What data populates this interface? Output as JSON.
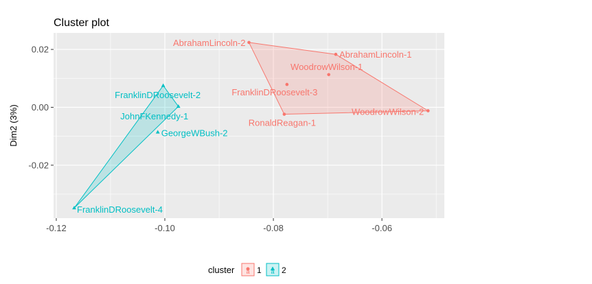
{
  "chart_data": {
    "type": "scatter",
    "title": "Cluster plot",
    "xlabel": "",
    "ylabel": "Dim2 (3%)",
    "xlim": [
      -0.1205,
      -0.0485
    ],
    "ylim": [
      -0.0383,
      0.0257
    ],
    "x_ticks": [
      -0.12,
      -0.1,
      -0.08,
      -0.06
    ],
    "x_tick_labels": [
      "-0.12",
      "-0.10",
      "-0.08",
      "-0.06"
    ],
    "y_ticks": [
      0.02,
      0.0,
      -0.02
    ],
    "y_tick_labels": [
      "0.02",
      "0.00",
      "-0.02"
    ],
    "grid": true,
    "legend": {
      "title": "cluster",
      "position": "bottom",
      "entries": [
        "1",
        "2"
      ]
    },
    "series": [
      {
        "name": "1",
        "color": "#F8766D",
        "marker": "circle",
        "hull": [
          "AbrahamLincoln-2",
          "AbrahamLincoln-1",
          "WoodrowWilson-2",
          "RonaldReagan-1"
        ],
        "points": [
          {
            "label": "AbrahamLincoln-2",
            "x": -0.0845,
            "y": 0.0224
          },
          {
            "label": "AbrahamLincoln-1",
            "x": -0.0685,
            "y": 0.0183
          },
          {
            "label": "WoodrowWilson-1",
            "x": -0.0698,
            "y": 0.0113
          },
          {
            "label": "FranklinDRoosevelt-3",
            "x": -0.0775,
            "y": 0.0079
          },
          {
            "label": "WoodrowWilson-2",
            "x": -0.0515,
            "y": -0.0012
          },
          {
            "label": "RonaldReagan-1",
            "x": -0.078,
            "y": -0.0024
          }
        ]
      },
      {
        "name": "2",
        "color": "#00BFC4",
        "marker": "triangle",
        "hull": [
          "FranklinDRoosevelt-2",
          "JohnFKennedy-1",
          "FranklinDRoosevelt-4"
        ],
        "points": [
          {
            "label": "FranklinDRoosevelt-2",
            "x": -0.1003,
            "y": 0.0075
          },
          {
            "label": "JohnFKennedy-1",
            "x": -0.0975,
            "y": 0.0003
          },
          {
            "label": "GeorgeWBush-2",
            "x": -0.1013,
            "y": -0.0086
          },
          {
            "label": "FranklinDRoosevelt-4",
            "x": -0.1167,
            "y": -0.0348
          }
        ]
      }
    ]
  }
}
